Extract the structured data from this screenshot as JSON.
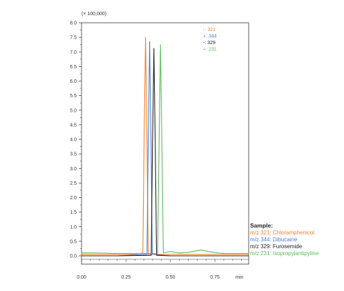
{
  "chart_data": {
    "type": "line",
    "y_multiplier_label": "(× 100,000)",
    "xlabel": "min",
    "ylabel": "",
    "x_ticks": [
      "0.00",
      "0.25",
      "0.50",
      "0.75"
    ],
    "x_tick_values": [
      0.0,
      0.25,
      0.5,
      0.75
    ],
    "y_ticks": [
      "0.0",
      "0.5",
      "1.0",
      "1.5",
      "2.0",
      "2.5",
      "3.0",
      "3.5",
      "4.0",
      "4.5",
      "5.0",
      "5.5",
      "6.0",
      "6.5",
      "7.0",
      "7.5",
      "8.0"
    ],
    "xlim": [
      0.0,
      0.94
    ],
    "ylim": [
      0.0,
      8.0
    ],
    "grid": false,
    "legend_position": "top-right",
    "series": [
      {
        "name": "-: 321",
        "color": "#f07f2a",
        "x": [
          0.0,
          0.1,
          0.2,
          0.3,
          0.345,
          0.352,
          0.36,
          0.368,
          0.375,
          0.5,
          0.7,
          0.94
        ],
        "y": [
          0.05,
          0.05,
          0.05,
          0.05,
          0.1,
          4.0,
          7.5,
          4.0,
          0.05,
          0.05,
          0.05,
          0.05
        ]
      },
      {
        "name": "+: 344",
        "color": "#4a7fcf",
        "x": [
          0.0,
          0.2,
          0.368,
          0.375,
          0.383,
          0.391,
          0.398,
          0.5,
          0.94
        ],
        "y": [
          0.0,
          0.0,
          0.05,
          3.8,
          7.35,
          3.8,
          0.05,
          0.0,
          0.0
        ]
      },
      {
        "name": "-: 329",
        "color": "#222222",
        "x": [
          0.0,
          0.2,
          0.392,
          0.399,
          0.407,
          0.415,
          0.422,
          0.5,
          0.94
        ],
        "y": [
          0.0,
          0.0,
          0.02,
          3.7,
          7.12,
          3.7,
          0.02,
          0.0,
          0.0
        ]
      },
      {
        "name": "+: 231",
        "color": "#5cb85c",
        "x": [
          0.0,
          0.1,
          0.2,
          0.3,
          0.428,
          0.436,
          0.444,
          0.452,
          0.46,
          0.5,
          0.55,
          0.6,
          0.67,
          0.74,
          0.8,
          0.94
        ],
        "y": [
          0.1,
          0.1,
          0.08,
          0.08,
          0.08,
          3.8,
          7.25,
          3.8,
          0.1,
          0.15,
          0.1,
          0.12,
          0.2,
          0.12,
          0.08,
          0.08
        ]
      }
    ]
  },
  "sample": {
    "title": "Sample:",
    "items": [
      {
        "mz": "m/z 321:",
        "compound": "Chloramphenicol",
        "color": "#f07f2a"
      },
      {
        "mz": "m/z 344:",
        "compound": "Dibucaine",
        "color": "#4a7fcf"
      },
      {
        "mz": "m/z 329:",
        "compound": "Furosemide",
        "color": "#222222"
      },
      {
        "mz": "m/z 231:",
        "compound": "Isopropylantipyline",
        "color": "#5cb85c"
      }
    ]
  }
}
